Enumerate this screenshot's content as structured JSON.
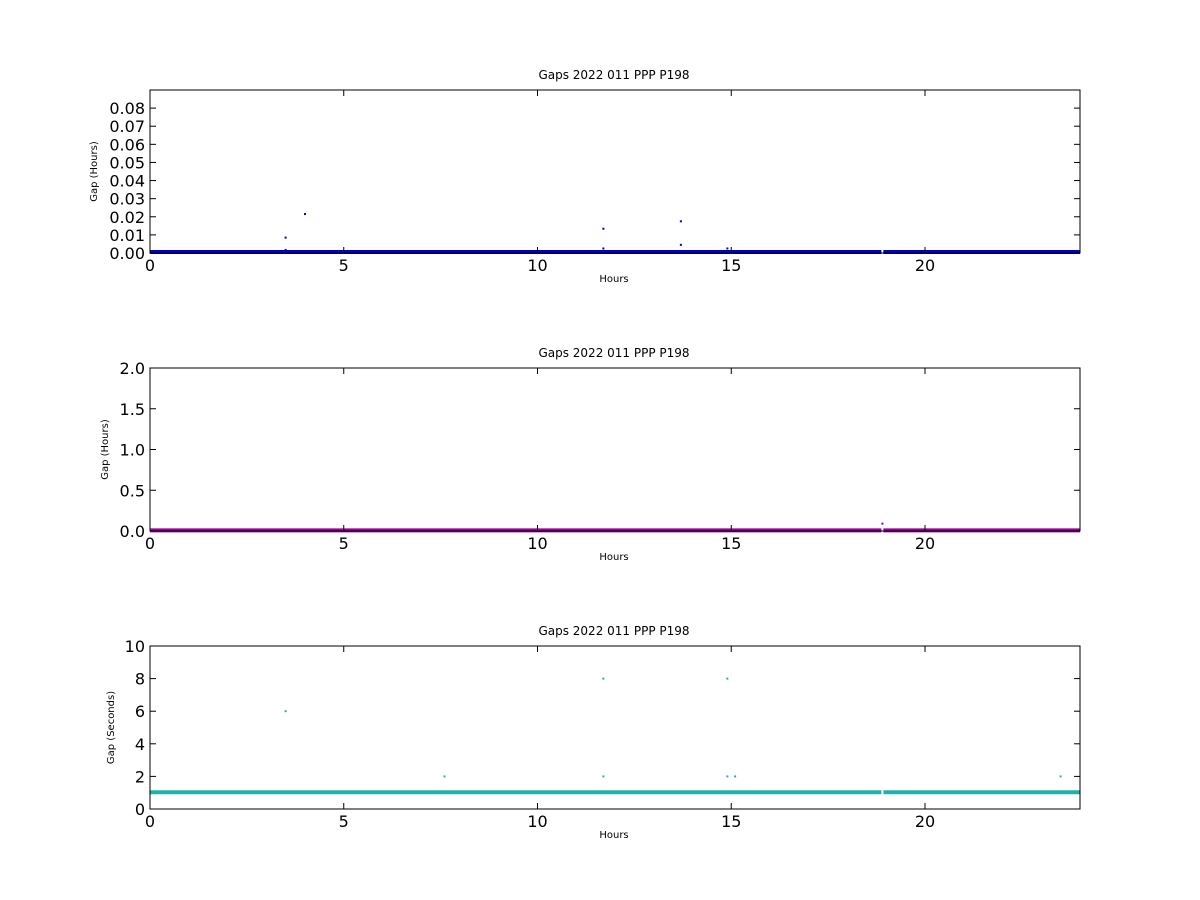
{
  "chart_data": [
    {
      "type": "scatter",
      "title": "Gaps 2022 011 PPP  P198",
      "xlabel": "Hours",
      "ylabel": "Gap (Hours)",
      "xlim": [
        0,
        24
      ],
      "ylim": [
        0,
        0.09
      ],
      "xticks": [
        0,
        5,
        10,
        15,
        20
      ],
      "yticks": [
        0.0,
        0.01,
        0.02,
        0.03,
        0.04,
        0.05,
        0.06,
        0.07,
        0.08
      ],
      "ytick_labels": [
        "0.00",
        "0.01",
        "0.02",
        "0.03",
        "0.04",
        "0.05",
        "0.06",
        "0.07",
        "0.08"
      ],
      "color": "#0000cc",
      "baseline": {
        "y": 0.0003,
        "x_range": [
          0,
          24
        ],
        "note_gap_near": 18.9
      },
      "points": [
        {
          "x": 3.5,
          "y": 0.0085
        },
        {
          "x": 3.5,
          "y": 0.0017
        },
        {
          "x": 4.0,
          "y": 0.0215
        },
        {
          "x": 11.7,
          "y": 0.0134
        },
        {
          "x": 11.7,
          "y": 0.0025
        },
        {
          "x": 13.7,
          "y": 0.0175
        },
        {
          "x": 13.7,
          "y": 0.0045
        },
        {
          "x": 14.9,
          "y": 0.0025
        }
      ],
      "grid": false
    },
    {
      "type": "scatter",
      "title": "Gaps 2022 011 PPP  P198",
      "xlabel": "Hours",
      "ylabel": "Gap (Hours)",
      "xlim": [
        0,
        24
      ],
      "ylim": [
        0,
        2.0
      ],
      "xticks": [
        0,
        5,
        10,
        15,
        20
      ],
      "yticks": [
        0.0,
        0.5,
        1.0,
        1.5,
        2.0
      ],
      "ytick_labels": [
        "0.0",
        "0.5",
        "1.0",
        "1.5",
        "2.0"
      ],
      "color": "#990099",
      "baseline": {
        "y": 0.002,
        "x_range": [
          0,
          24
        ],
        "note_gap_near": 18.9
      },
      "points": [
        {
          "x": 18.9,
          "y": 0.09
        }
      ],
      "grid": false
    },
    {
      "type": "scatter",
      "title": "Gaps 2022 011 PPP  P198",
      "xlabel": "Hours",
      "ylabel": "Gap (Seconds)",
      "xlim": [
        0,
        24
      ],
      "ylim": [
        0,
        10
      ],
      "xticks": [
        0,
        5,
        10,
        15,
        20
      ],
      "yticks": [
        0,
        2,
        4,
        6,
        8,
        10
      ],
      "ytick_labels": [
        "0",
        "2",
        "4",
        "6",
        "8",
        "10"
      ],
      "color": "#20b2aa",
      "baseline": {
        "y": 1.0,
        "x_range": [
          0,
          24
        ],
        "note_gap_near": 18.9
      },
      "points": [
        {
          "x": 3.5,
          "y": 6.0
        },
        {
          "x": 7.6,
          "y": 2.0
        },
        {
          "x": 11.7,
          "y": 8.0
        },
        {
          "x": 11.7,
          "y": 2.0
        },
        {
          "x": 14.9,
          "y": 8.0
        },
        {
          "x": 14.9,
          "y": 2.0
        },
        {
          "x": 15.1,
          "y": 2.0
        },
        {
          "x": 23.5,
          "y": 2.0
        }
      ],
      "grid": false
    }
  ]
}
